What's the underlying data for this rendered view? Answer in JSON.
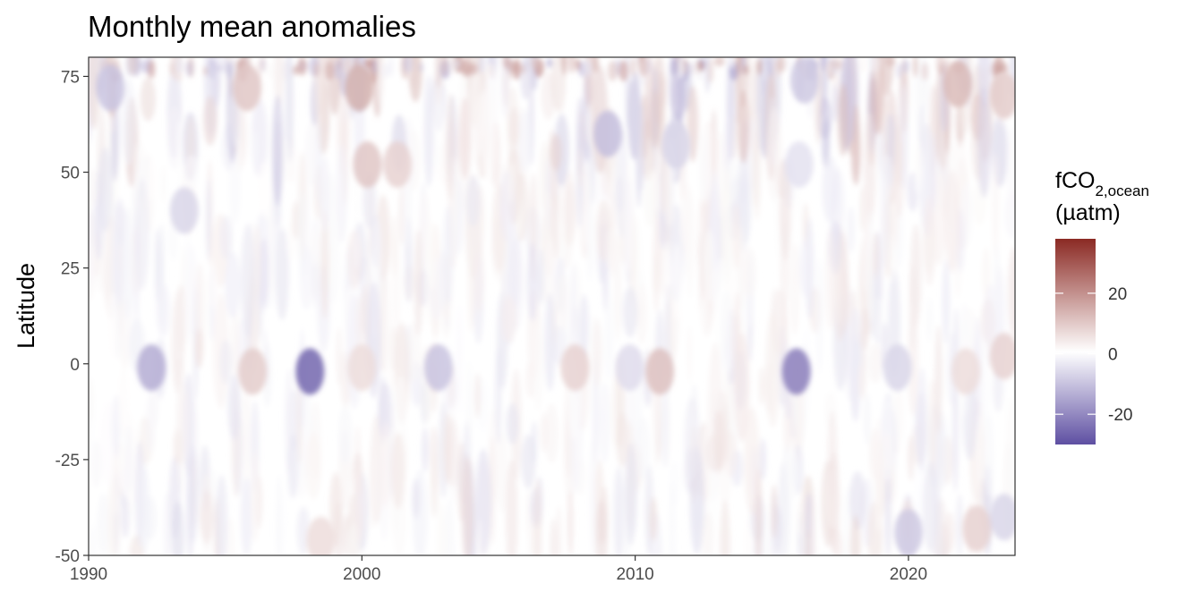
{
  "chart_data": {
    "type": "heatmap",
    "title": "Monthly mean anomalies",
    "xlabel": "",
    "ylabel": "Latitude",
    "xlim": [
      1990,
      2023.9
    ],
    "ylim": [
      -50,
      80
    ],
    "x_ticks": [
      1990,
      2000,
      2010,
      2020
    ],
    "y_ticks": [
      75,
      50,
      25,
      0,
      -25,
      -50
    ],
    "colorbar": {
      "title_main": "fCO",
      "title_sub": "2,ocean",
      "unit": "(µatm)",
      "range": [
        -30,
        38
      ],
      "ticks": [
        20,
        0,
        -20
      ],
      "colors": {
        "low": "#5e4fa2",
        "mid": "#ffffff",
        "high": "#8b2a24"
      }
    },
    "grid": false,
    "legend_position": "right",
    "features": [
      {
        "x": 1992.3,
        "y": -1,
        "value": -14
      },
      {
        "x": 1996.0,
        "y": -2,
        "value": 9
      },
      {
        "x": 1998.1,
        "y": -2,
        "value": -26
      },
      {
        "x": 2000.0,
        "y": -1,
        "value": 6
      },
      {
        "x": 2002.8,
        "y": -1,
        "value": -10
      },
      {
        "x": 2007.8,
        "y": -1,
        "value": 8
      },
      {
        "x": 2009.8,
        "y": -1,
        "value": -6
      },
      {
        "x": 2010.9,
        "y": -2,
        "value": 11
      },
      {
        "x": 2015.9,
        "y": -2,
        "value": -22
      },
      {
        "x": 2019.6,
        "y": -1,
        "value": -7
      },
      {
        "x": 2022.1,
        "y": -2,
        "value": 6
      },
      {
        "x": 2023.5,
        "y": 2,
        "value": 8
      },
      {
        "x": 1999.9,
        "y": 72,
        "value": 14
      },
      {
        "x": 1995.8,
        "y": 72,
        "value": 10
      },
      {
        "x": 2021.8,
        "y": 73,
        "value": 12
      },
      {
        "x": 2023.5,
        "y": 70,
        "value": 9
      },
      {
        "x": 1990.8,
        "y": 72,
        "value": -10
      },
      {
        "x": 2016.2,
        "y": 74,
        "value": -9
      },
      {
        "x": 2009.0,
        "y": 60,
        "value": -11
      },
      {
        "x": 2011.5,
        "y": 57,
        "value": -7
      },
      {
        "x": 2000.2,
        "y": 52,
        "value": 10
      },
      {
        "x": 2001.3,
        "y": 52,
        "value": 8
      },
      {
        "x": 1993.5,
        "y": 40,
        "value": -7
      },
      {
        "x": 2016.0,
        "y": 52,
        "value": -5
      },
      {
        "x": 2020.0,
        "y": -44,
        "value": -9
      },
      {
        "x": 2022.5,
        "y": -43,
        "value": 8
      },
      {
        "x": 1998.5,
        "y": -46,
        "value": 6
      },
      {
        "x": 2023.5,
        "y": -40,
        "value": -7
      }
    ]
  }
}
